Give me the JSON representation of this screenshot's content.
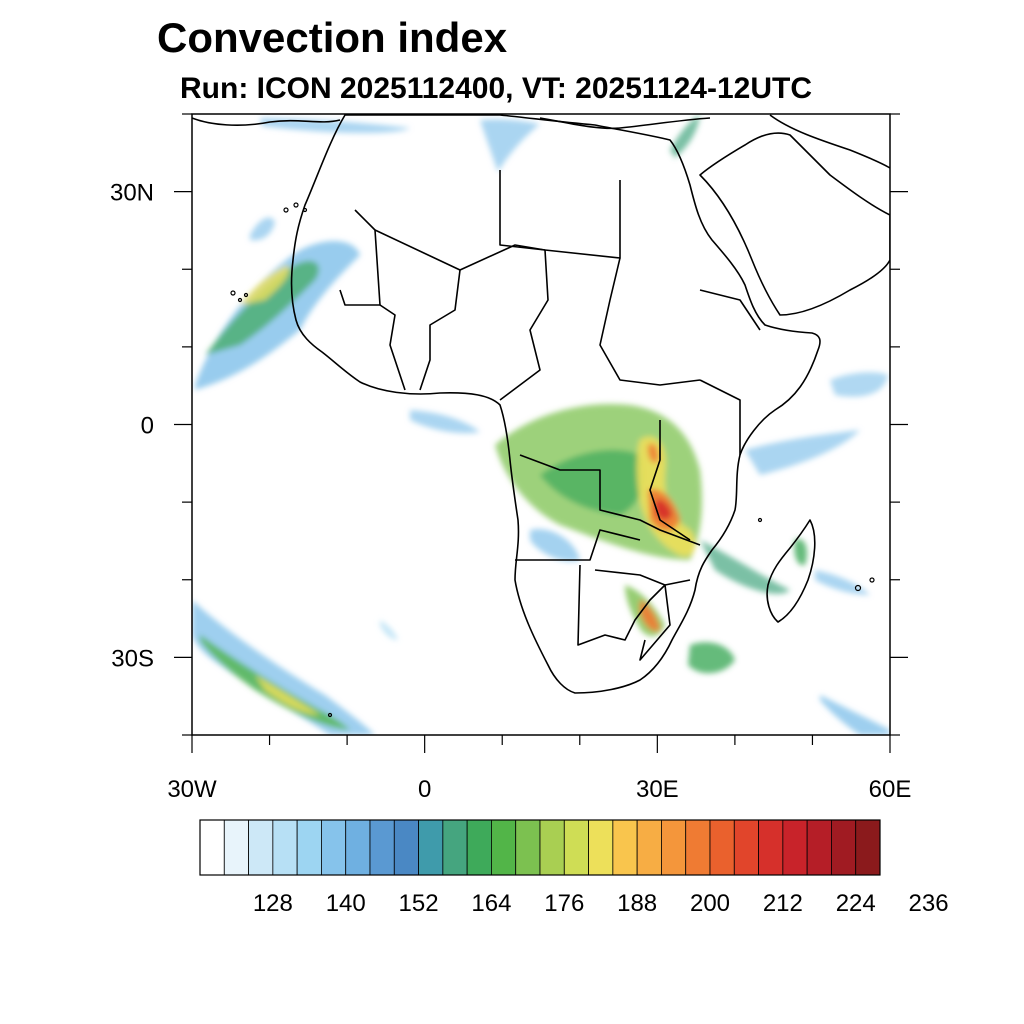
{
  "title": "Convection index",
  "subtitle": "Run: ICON 2025112400,  VT: 20251124-12UTC",
  "map": {
    "lon_range": [
      -30,
      60
    ],
    "lat_range": [
      -40,
      40
    ],
    "x_ticks": [
      {
        "lon": -30,
        "label": "30W"
      },
      {
        "lon": 0,
        "label": "0"
      },
      {
        "lon": 30,
        "label": "30E"
      },
      {
        "lon": 60,
        "label": "60E"
      }
    ],
    "y_ticks": [
      {
        "lat": 30,
        "label": "30N"
      },
      {
        "lat": 0,
        "label": "0"
      },
      {
        "lat": -30,
        "label": "30S"
      }
    ]
  },
  "colorbar": {
    "colors": [
      "#ffffff",
      "#e8f4fb",
      "#cde8f7",
      "#b7e0f5",
      "#9dd5f2",
      "#86c3eb",
      "#6fb0e1",
      "#5a99d2",
      "#4a88c4",
      "#3f9bab",
      "#45a57f",
      "#3eaa5a",
      "#52b548",
      "#7cc150",
      "#a9cf52",
      "#cfdd55",
      "#ede05a",
      "#f9c54d",
      "#f7ad44",
      "#f4963b",
      "#ef7b33",
      "#ea612d",
      "#e1452b",
      "#d6302b",
      "#c8232a",
      "#b51e27",
      "#a01b22",
      "#8b1a1c"
    ],
    "labels": [
      "128",
      "140",
      "152",
      "164",
      "176",
      "188",
      "200",
      "212",
      "224",
      "236"
    ]
  }
}
